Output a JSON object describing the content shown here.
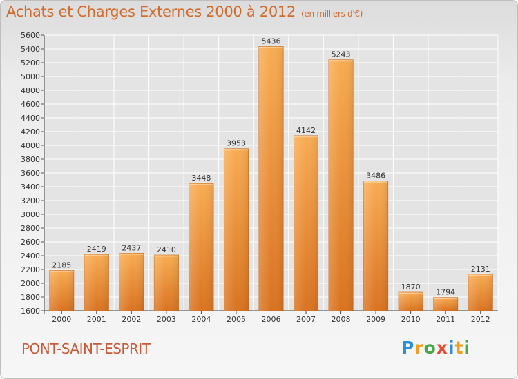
{
  "title": "Achats et Charges Externes 2000 à 2012",
  "subtitle": "(en milliers d'€)",
  "city": "PONT-SAINT-ESPRIT",
  "logo": {
    "letters": [
      "P",
      "r",
      "o",
      "x",
      "i",
      "t",
      "i"
    ],
    "colors": [
      "#2b8fd6",
      "#f0a020",
      "#4aa84a",
      "#e84c2c",
      "#2b8fd6",
      "#f0a020",
      "#4aa84a"
    ]
  },
  "colors": {
    "bar_light": "#f7a94f",
    "bar_dark": "#d9731e",
    "title": "#d36b2d",
    "grid": "#ffffff"
  },
  "chart_data": {
    "type": "bar",
    "title": "Achats et Charges Externes 2000 à 2012",
    "subtitle": "(en milliers d'€)",
    "categories": [
      "2000",
      "2001",
      "2002",
      "2003",
      "2004",
      "2005",
      "2006",
      "2007",
      "2008",
      "2009",
      "2010",
      "2011",
      "2012"
    ],
    "values": [
      2185,
      2419,
      2437,
      2410,
      3448,
      3953,
      5436,
      4142,
      5243,
      3486,
      1870,
      1794,
      2131
    ],
    "ylim": [
      1600,
      5600
    ],
    "yticks": [
      1600,
      1800,
      2000,
      2200,
      2400,
      2600,
      2800,
      3000,
      3200,
      3400,
      3600,
      3800,
      4000,
      4200,
      4400,
      4600,
      4800,
      5000,
      5200,
      5400,
      5600
    ],
    "grid": true,
    "data_labels": true
  }
}
